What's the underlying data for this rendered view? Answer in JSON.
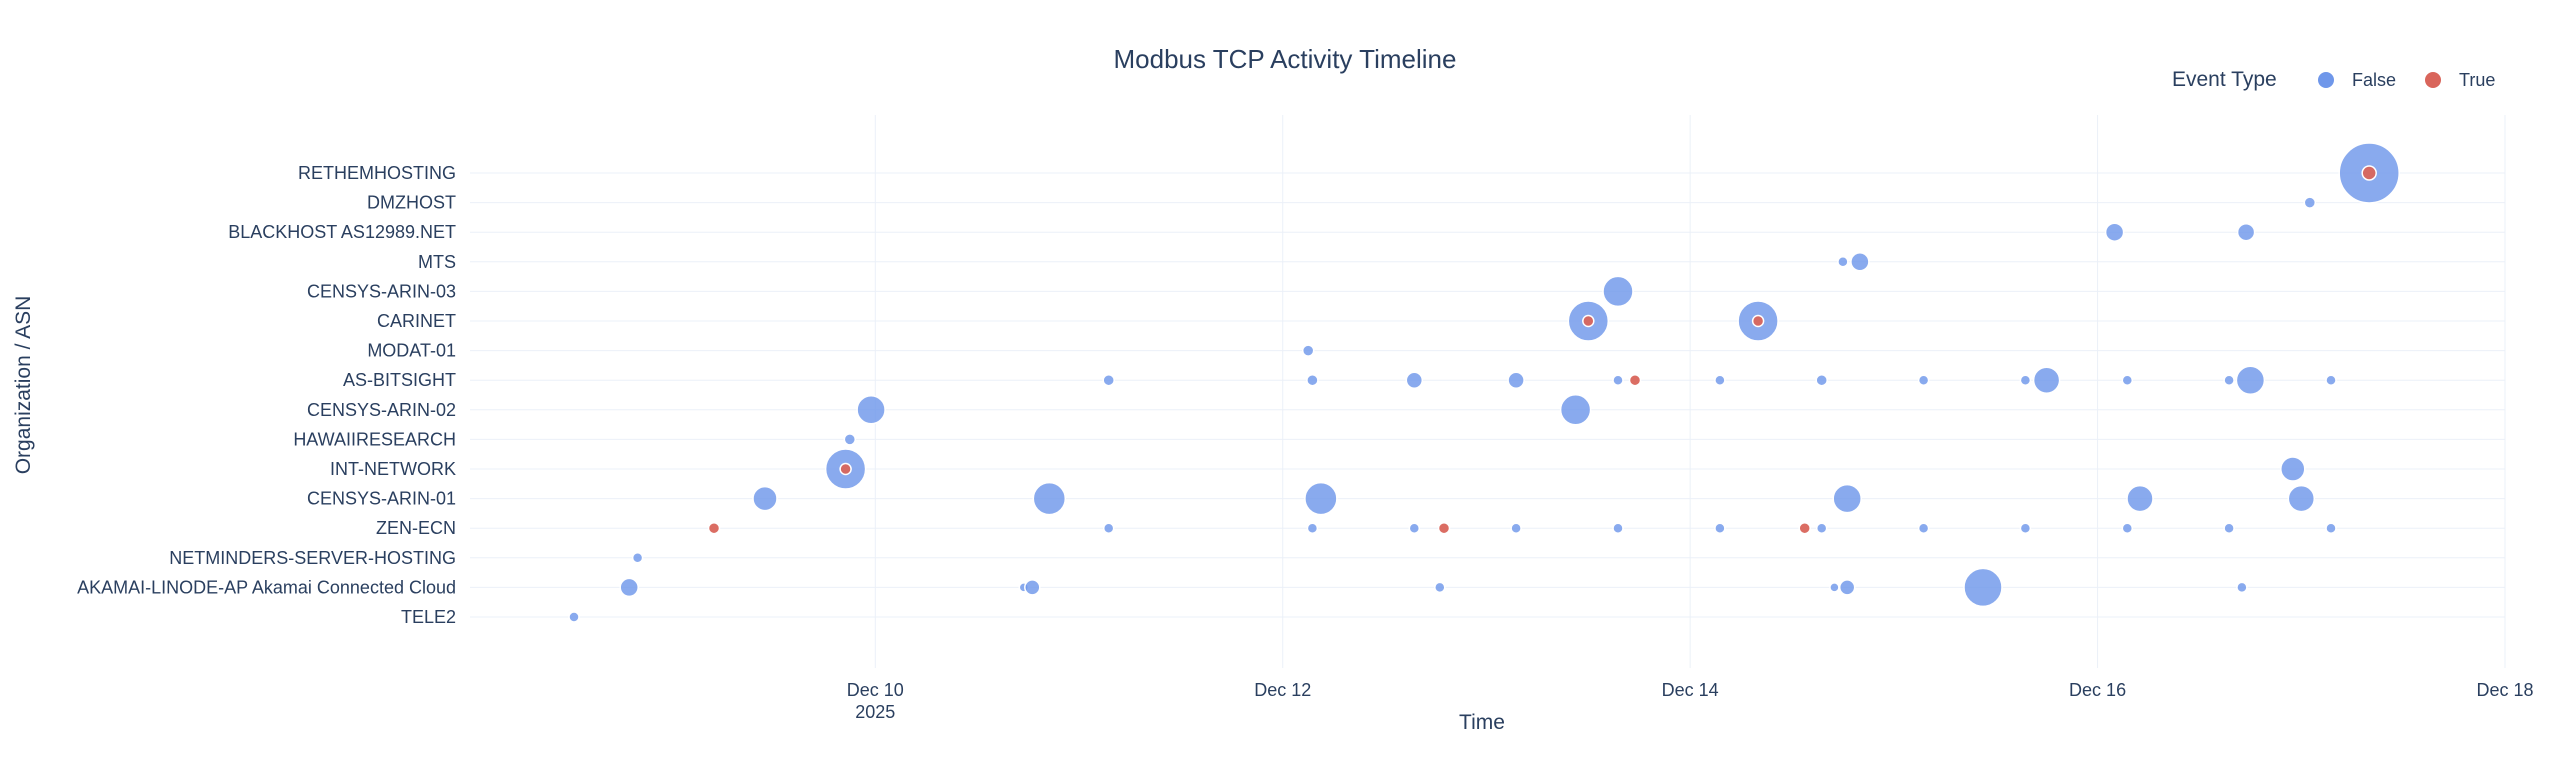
{
  "chart_data": {
    "type": "scatter",
    "title": "Modbus TCP Activity Timeline",
    "xlabel": "Time",
    "ylabel": "Organization / ASN",
    "x_range": [
      "2025-12-08T00:15",
      "2025-12-18T00:00"
    ],
    "x_ticks": [
      {
        "date": "2025-12-10",
        "label": "Dec 10",
        "sublabel": "2025"
      },
      {
        "date": "2025-12-12",
        "label": "Dec 12",
        "sublabel": ""
      },
      {
        "date": "2025-12-14",
        "label": "Dec 14",
        "sublabel": ""
      },
      {
        "date": "2025-12-16",
        "label": "Dec 16",
        "sublabel": ""
      },
      {
        "date": "2025-12-18",
        "label": "Dec 18",
        "sublabel": ""
      }
    ],
    "categories": [
      "RETHEMHOSTING",
      "DMZHOST",
      "BLACKHOST AS12989.NET",
      "MTS",
      "CENSYS-ARIN-03",
      "CARINET",
      "MODAT-01",
      "AS-BITSIGHT",
      "CENSYS-ARIN-02",
      "HAWAIIRESEARCH",
      "INT-NETWORK",
      "CENSYS-ARIN-01",
      "ZEN-ECN",
      "NETMINDERS-SERVER-HOSTING",
      "AKAMAI-LINODE-AP Akamai Connected Cloud",
      "TELE2"
    ],
    "grid": true,
    "legend": {
      "title": "Event Type",
      "position": "top-right"
    },
    "series": [
      {
        "name": "False",
        "color": "#6f97ea",
        "points": [
          {
            "x": "2025-12-17T08:00",
            "y": "RETHEMHOSTING",
            "size": 60
          },
          {
            "x": "2025-12-17T01:00",
            "y": "DMZHOST",
            "size": 11
          },
          {
            "x": "2025-12-16T02:00",
            "y": "BLACKHOST AS12989.NET",
            "size": 18
          },
          {
            "x": "2025-12-16T17:30",
            "y": "BLACKHOST AS12989.NET",
            "size": 17
          },
          {
            "x": "2025-12-14T18:00",
            "y": "MTS",
            "size": 10
          },
          {
            "x": "2025-12-14T20:00",
            "y": "MTS",
            "size": 18
          },
          {
            "x": "2025-12-13T15:30",
            "y": "CENSYS-ARIN-03",
            "size": 30
          },
          {
            "x": "2025-12-13T12:00",
            "y": "CARINET",
            "size": 40
          },
          {
            "x": "2025-12-14T08:00",
            "y": "CARINET",
            "size": 40
          },
          {
            "x": "2025-12-12T03:00",
            "y": "MODAT-01",
            "size": 11
          },
          {
            "x": "2025-12-11T03:30",
            "y": "AS-BITSIGHT",
            "size": 11
          },
          {
            "x": "2025-12-12T03:30",
            "y": "AS-BITSIGHT",
            "size": 11
          },
          {
            "x": "2025-12-12T15:30",
            "y": "AS-BITSIGHT",
            "size": 16
          },
          {
            "x": "2025-12-13T03:30",
            "y": "AS-BITSIGHT",
            "size": 16
          },
          {
            "x": "2025-12-13T15:30",
            "y": "AS-BITSIGHT",
            "size": 10
          },
          {
            "x": "2025-12-14T03:30",
            "y": "AS-BITSIGHT",
            "size": 10
          },
          {
            "x": "2025-12-14T15:30",
            "y": "AS-BITSIGHT",
            "size": 11
          },
          {
            "x": "2025-12-15T03:30",
            "y": "AS-BITSIGHT",
            "size": 10
          },
          {
            "x": "2025-12-15T15:30",
            "y": "AS-BITSIGHT",
            "size": 10
          },
          {
            "x": "2025-12-15T18:00",
            "y": "AS-BITSIGHT",
            "size": 26
          },
          {
            "x": "2025-12-16T03:30",
            "y": "AS-BITSIGHT",
            "size": 10
          },
          {
            "x": "2025-12-16T15:30",
            "y": "AS-BITSIGHT",
            "size": 10
          },
          {
            "x": "2025-12-16T18:00",
            "y": "AS-BITSIGHT",
            "size": 28
          },
          {
            "x": "2025-12-17T03:30",
            "y": "AS-BITSIGHT",
            "size": 10
          },
          {
            "x": "2025-12-09T23:30",
            "y": "CENSYS-ARIN-02",
            "size": 28
          },
          {
            "x": "2025-12-13T10:30",
            "y": "CENSYS-ARIN-02",
            "size": 30
          },
          {
            "x": "2025-12-09T21:00",
            "y": "HAWAIIRESEARCH",
            "size": 11
          },
          {
            "x": "2025-12-09T20:30",
            "y": "INT-NETWORK",
            "size": 40
          },
          {
            "x": "2025-12-16T23:00",
            "y": "INT-NETWORK",
            "size": 24
          },
          {
            "x": "2025-12-09T11:00",
            "y": "CENSYS-ARIN-01",
            "size": 24
          },
          {
            "x": "2025-12-10T20:30",
            "y": "CENSYS-ARIN-01",
            "size": 32
          },
          {
            "x": "2025-12-12T04:30",
            "y": "CENSYS-ARIN-01",
            "size": 32
          },
          {
            "x": "2025-12-14T18:30",
            "y": "CENSYS-ARIN-01",
            "size": 28
          },
          {
            "x": "2025-12-16T05:00",
            "y": "CENSYS-ARIN-01",
            "size": 26
          },
          {
            "x": "2025-12-17T00:00",
            "y": "CENSYS-ARIN-01",
            "size": 26
          },
          {
            "x": "2025-12-11T03:30",
            "y": "ZEN-ECN",
            "size": 10
          },
          {
            "x": "2025-12-12T03:30",
            "y": "ZEN-ECN",
            "size": 10
          },
          {
            "x": "2025-12-12T15:30",
            "y": "ZEN-ECN",
            "size": 10
          },
          {
            "x": "2025-12-13T03:30",
            "y": "ZEN-ECN",
            "size": 10
          },
          {
            "x": "2025-12-13T15:30",
            "y": "ZEN-ECN",
            "size": 10
          },
          {
            "x": "2025-12-14T03:30",
            "y": "ZEN-ECN",
            "size": 10
          },
          {
            "x": "2025-12-14T15:30",
            "y": "ZEN-ECN",
            "size": 10
          },
          {
            "x": "2025-12-15T03:30",
            "y": "ZEN-ECN",
            "size": 10
          },
          {
            "x": "2025-12-15T15:30",
            "y": "ZEN-ECN",
            "size": 10
          },
          {
            "x": "2025-12-16T03:30",
            "y": "ZEN-ECN",
            "size": 10
          },
          {
            "x": "2025-12-16T15:30",
            "y": "ZEN-ECN",
            "size": 10
          },
          {
            "x": "2025-12-17T03:30",
            "y": "ZEN-ECN",
            "size": 10
          },
          {
            "x": "2025-12-08T20:00",
            "y": "NETMINDERS-SERVER-HOSTING",
            "size": 10
          },
          {
            "x": "2025-12-08T19:00",
            "y": "AKAMAI-LINODE-AP Akamai Connected Cloud",
            "size": 18
          },
          {
            "x": "2025-12-10T17:30",
            "y": "AKAMAI-LINODE-AP Akamai Connected Cloud",
            "size": 9
          },
          {
            "x": "2025-12-10T18:30",
            "y": "AKAMAI-LINODE-AP Akamai Connected Cloud",
            "size": 15
          },
          {
            "x": "2025-12-12T18:30",
            "y": "AKAMAI-LINODE-AP Akamai Connected Cloud",
            "size": 10
          },
          {
            "x": "2025-12-14T17:00",
            "y": "AKAMAI-LINODE-AP Akamai Connected Cloud",
            "size": 9
          },
          {
            "x": "2025-12-14T18:30",
            "y": "AKAMAI-LINODE-AP Akamai Connected Cloud",
            "size": 15
          },
          {
            "x": "2025-12-15T10:30",
            "y": "AKAMAI-LINODE-AP Akamai Connected Cloud",
            "size": 38
          },
          {
            "x": "2025-12-16T17:00",
            "y": "AKAMAI-LINODE-AP Akamai Connected Cloud",
            "size": 10
          },
          {
            "x": "2025-12-08T12:30",
            "y": "TELE2",
            "size": 10
          }
        ]
      },
      {
        "name": "True",
        "color": "#d9655b",
        "points": [
          {
            "x": "2025-12-17T08:00",
            "y": "RETHEMHOSTING",
            "size": 14
          },
          {
            "x": "2025-12-13T12:00",
            "y": "CARINET",
            "size": 11
          },
          {
            "x": "2025-12-14T08:00",
            "y": "CARINET",
            "size": 11
          },
          {
            "x": "2025-12-13T17:30",
            "y": "AS-BITSIGHT",
            "size": 11
          },
          {
            "x": "2025-12-09T20:30",
            "y": "INT-NETWORK",
            "size": 11
          },
          {
            "x": "2025-12-09T05:00",
            "y": "ZEN-ECN",
            "size": 11
          },
          {
            "x": "2025-12-12T19:00",
            "y": "ZEN-ECN",
            "size": 11
          },
          {
            "x": "2025-12-14T13:30",
            "y": "ZEN-ECN",
            "size": 11
          }
        ]
      }
    ]
  }
}
